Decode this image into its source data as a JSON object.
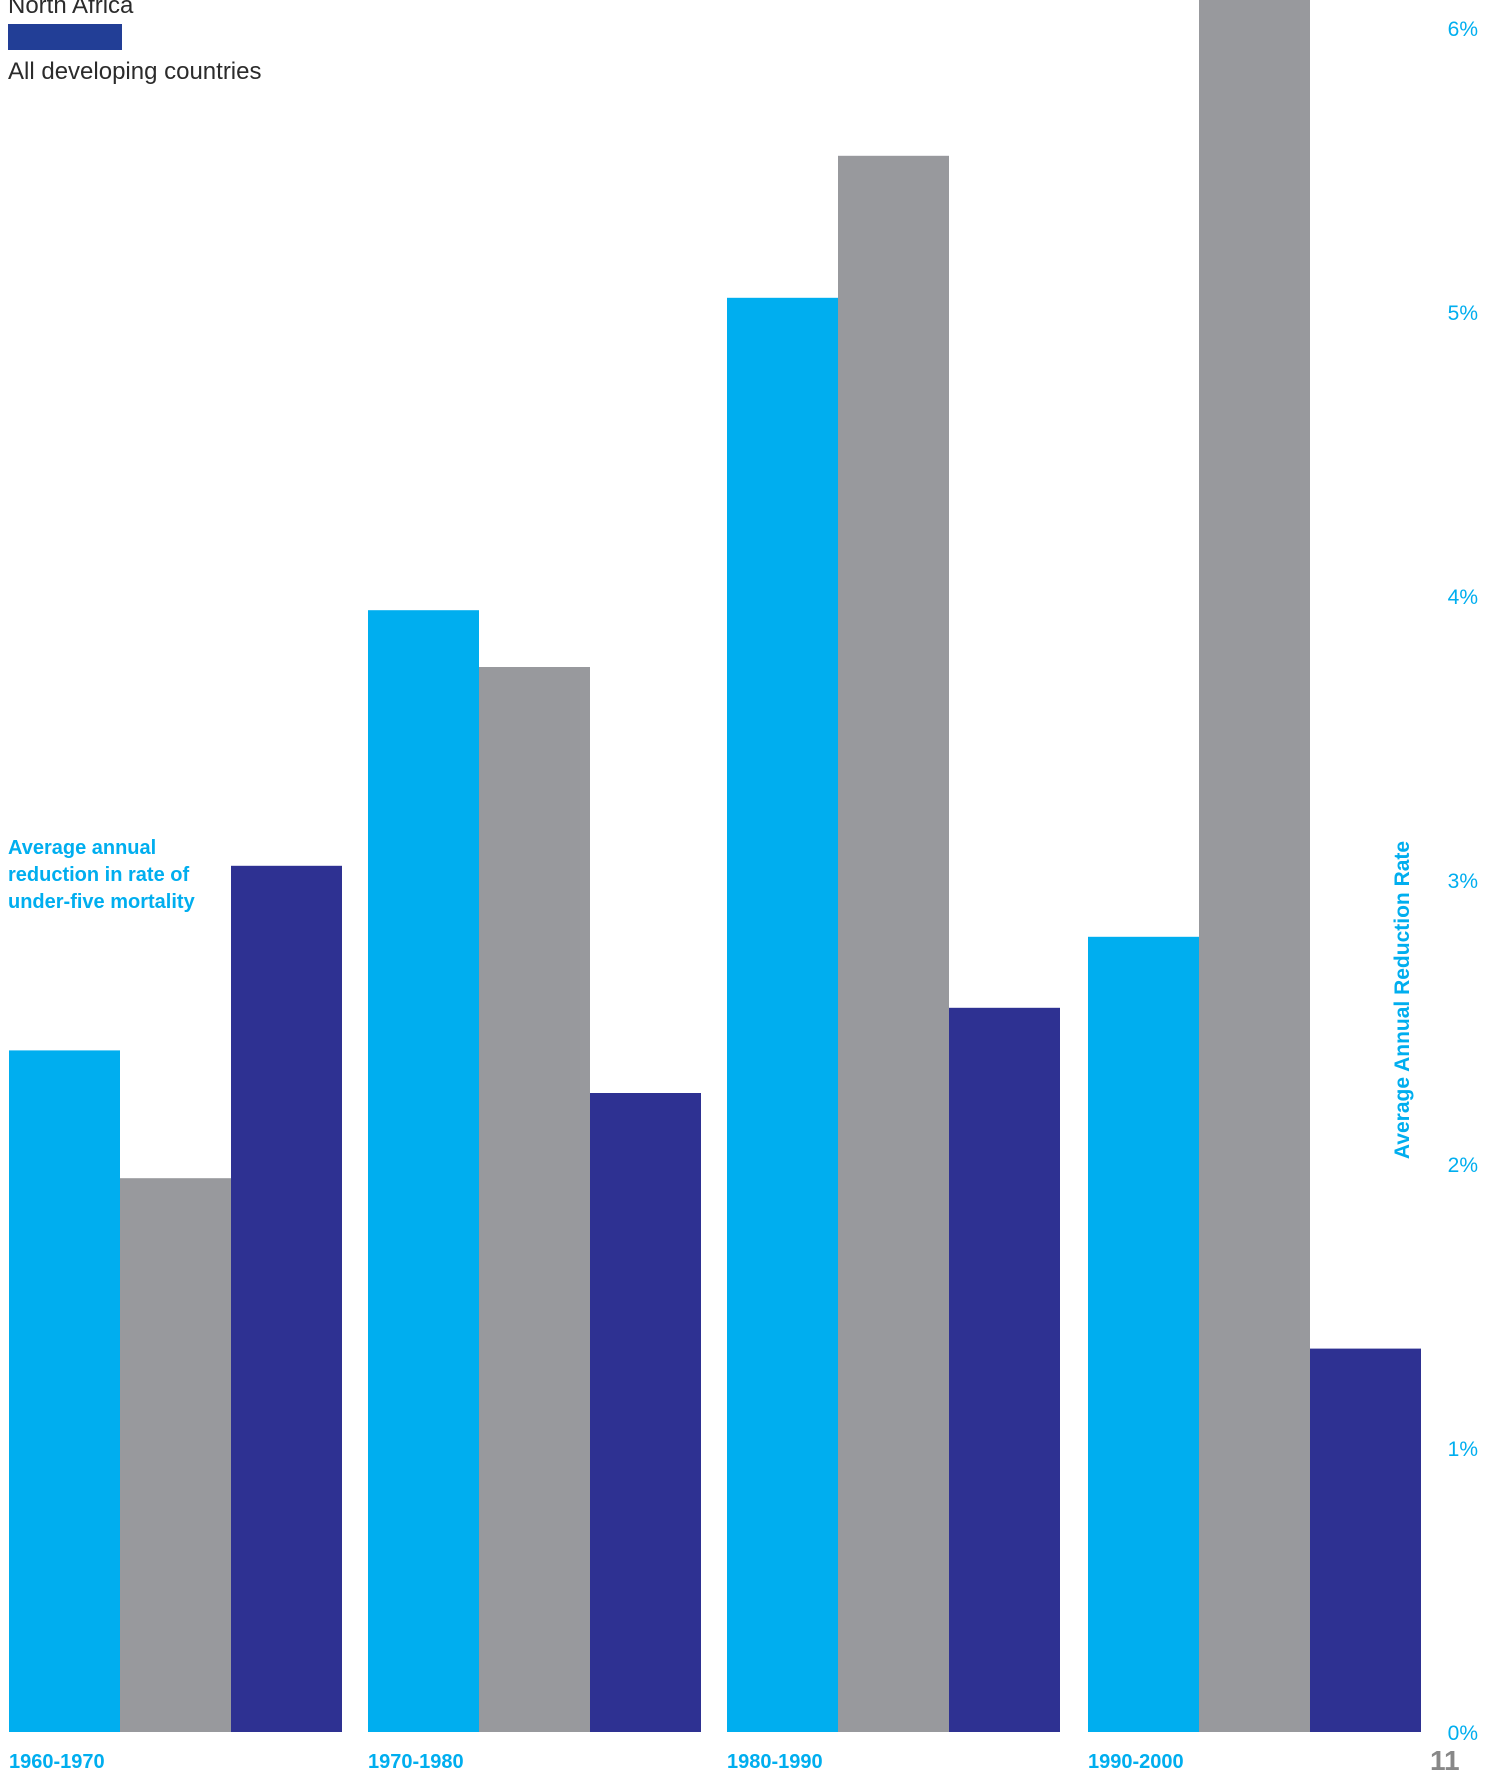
{
  "legend": [
    {
      "label": "North Africa",
      "color": "#98999d"
    },
    {
      "label": "All developing countries",
      "color": "#223e96"
    }
  ],
  "annotation": "Average annual reduction in rate of under-five mortality",
  "page_number": "11",
  "chart_data": {
    "type": "bar",
    "categories": [
      "1960-1970",
      "1970-1980",
      "1980-1990",
      "1990-2000"
    ],
    "series": [
      {
        "values": [
          2.4,
          3.95,
          5.05,
          2.8
        ],
        "color": "#00aeef"
      },
      {
        "name": "North Africa",
        "values": [
          1.95,
          3.75,
          5.55,
          6.1
        ],
        "color": "#98999d"
      },
      {
        "name": "All developing countries",
        "values": [
          3.05,
          2.25,
          2.55,
          1.35
        ],
        "color": "#2e3192"
      }
    ],
    "ylabel": "Average Annual Reduction Rate",
    "yticks": [
      "0%",
      "1%",
      "2%",
      "3%",
      "4%",
      "5%",
      "6%"
    ],
    "ylim": [
      0,
      6
    ],
    "grid": false,
    "legend_position": "top-left"
  }
}
